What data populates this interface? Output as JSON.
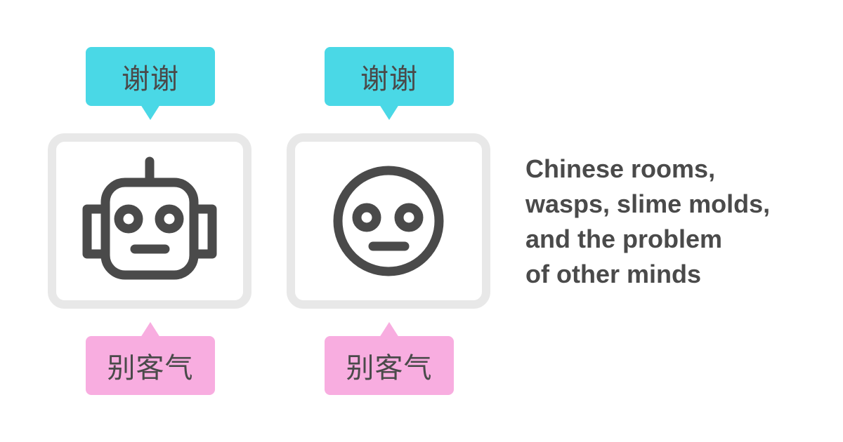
{
  "panels": [
    {
      "figure": "robot-icon",
      "speech_top": "谢谢",
      "speech_bottom": "别客气"
    },
    {
      "figure": "neutral-face-icon",
      "speech_top": "谢谢",
      "speech_bottom": "别客气"
    }
  ],
  "caption": {
    "lines": [
      "Chinese rooms,",
      "wasps, slime molds,",
      "and the problem",
      "of other minds"
    ]
  },
  "colors": {
    "top_bubble": "#4ad8e6",
    "bottom_bubble": "#f8ade0",
    "frame": "#e8e8e8",
    "icon_stroke": "#4a4a4a",
    "text": "#4a4a4a"
  }
}
